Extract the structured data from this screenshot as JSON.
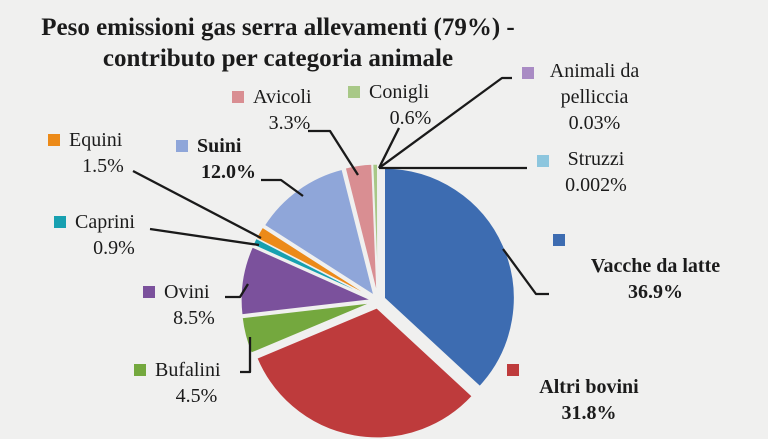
{
  "header": {
    "title_line1": "Peso emissioni gas serra allevamenti (79%) -",
    "title_line2": "contributo per categoria animale"
  },
  "chart_data": {
    "type": "pie",
    "title": "Peso emissioni gas serra allevamenti (79%) - contributo per categoria animale",
    "unit": "%",
    "start_angle_deg": 0,
    "direction": "clockwise",
    "exploded": true,
    "legend_position": "callouts-around-pie",
    "background": "#F0F0EF",
    "line_color": "#1A1A1A",
    "slices": [
      {
        "label": "Vacche da latte",
        "value": 36.9,
        "pct": "36.9%",
        "color": "#3D6CB1",
        "bold": true
      },
      {
        "label": "Altri bovini",
        "value": 31.8,
        "pct": "31.8%",
        "color": "#BE3B3C",
        "bold": true
      },
      {
        "label": "Bufalini",
        "value": 4.5,
        "pct": "4.5%",
        "color": "#74A83E",
        "bold": false
      },
      {
        "label": "Ovini",
        "value": 8.5,
        "pct": "8.5%",
        "color": "#7B519C",
        "bold": false
      },
      {
        "label": "Caprini",
        "value": 0.9,
        "pct": "0.9%",
        "color": "#17A0B0",
        "bold": false
      },
      {
        "label": "Equini",
        "value": 1.5,
        "pct": "1.5%",
        "color": "#EC8A18",
        "bold": false
      },
      {
        "label": "Suini",
        "value": 12.0,
        "pct": "12.0%",
        "color": "#8FA6D9",
        "bold": true
      },
      {
        "label": "Avicoli",
        "value": 3.3,
        "pct": "3.3%",
        "color": "#D98E92",
        "bold": false
      },
      {
        "label": "Conigli",
        "value": 0.6,
        "pct": "0.6%",
        "color": "#A8C887",
        "bold": false
      },
      {
        "label": "Animali da pelliccia",
        "value": 0.03,
        "pct": "0.03%",
        "color": "#A98BC4",
        "bold": false
      },
      {
        "label": "Struzzi",
        "value": 0.002,
        "pct": "0.002%",
        "color": "#8DC6DE",
        "bold": false
      }
    ]
  }
}
